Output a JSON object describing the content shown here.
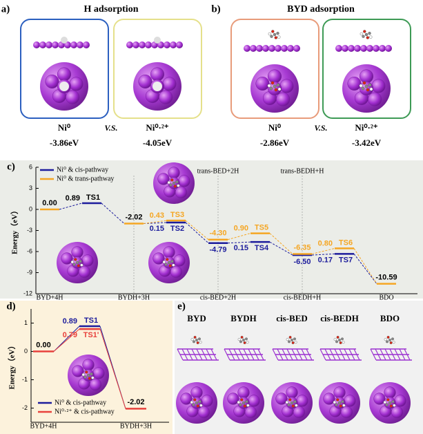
{
  "panel_a": {
    "label": "a)",
    "title": "H adsorption",
    "versus": "V.S.",
    "items": [
      {
        "metal": "Ni⁰",
        "energy": "-3.86eV"
      },
      {
        "metal": "Ni⁰·²⁺",
        "energy": "-4.05eV"
      }
    ]
  },
  "panel_b": {
    "label": "b)",
    "title": "BYD adsorption",
    "versus": "V.S.",
    "items": [
      {
        "metal": "Ni⁰",
        "energy": "-2.86eV"
      },
      {
        "metal": "Ni⁰·²⁺",
        "energy": "-3.42eV"
      }
    ]
  },
  "chart_data": [
    {
      "type": "energy_profile",
      "label": "c)",
      "y_label": "Energy（eV）",
      "ylim": [
        -12,
        6
      ],
      "yticks": [
        6,
        3,
        0,
        -3,
        -6,
        -9,
        -12
      ],
      "categories": [
        "BYD+4H",
        "BYDH+3H",
        "cis-BED+2H",
        "cis-BEDH+H",
        "BDO"
      ],
      "top_categories": [
        "trans-BED+2H",
        "trans-BEDH+H"
      ],
      "legend": "upper left",
      "series": [
        {
          "name": "Ni⁰ & cis-pathway",
          "color": "#1c1c9c",
          "values": [
            0,
            -2.02,
            -4.79,
            -6.5,
            -10.59
          ],
          "value_labels": [
            "0.00",
            "-2.02",
            "-4.79",
            "-6.50",
            "-10.59"
          ],
          "barriers": [
            0.89,
            0.15,
            0.15,
            0.17
          ],
          "barrier_labels": [
            "0.89",
            "0.15",
            "0.15",
            "0.17"
          ],
          "ts_labels": [
            "TS1",
            "TS2",
            "TS4",
            "TS7"
          ]
        },
        {
          "name": "Ni⁰ & trans-pathway",
          "color": "#f5a623",
          "values": [
            null,
            null,
            -4.3,
            -6.35,
            null
          ],
          "value_labels": [
            null,
            null,
            "-4.30",
            "-6.35",
            null
          ],
          "barriers": [
            null,
            0.43,
            0.9,
            0.8
          ],
          "barrier_labels": [
            null,
            "0.43",
            "0.90",
            "0.80"
          ],
          "ts_labels": [
            null,
            "TS3",
            "TS5",
            "TS6"
          ]
        }
      ]
    },
    {
      "type": "energy_profile",
      "label": "d)",
      "y_label": "Energy（eV）",
      "ylim": [
        -2.5,
        1.5
      ],
      "yticks": [
        1,
        0,
        -1,
        -2
      ],
      "categories": [
        "BYD+4H",
        "BYDH+3H"
      ],
      "legend": "lower left",
      "series": [
        {
          "name": "Ni⁰ & cis-pathway",
          "color": "#1c1c9c",
          "values": [
            0,
            -2.02
          ],
          "value_labels": [
            "0.00",
            "-2.02"
          ],
          "barriers": [
            0.89
          ],
          "barrier_labels": [
            "0.89"
          ],
          "ts_labels": [
            "TS1"
          ]
        },
        {
          "name": "Ni⁰·²⁺ & cis-pathway",
          "color": "#e8413c",
          "barriers": [
            0.79
          ],
          "barrier_labels": [
            "0.79"
          ],
          "ts_labels": [
            "TS1'"
          ]
        }
      ]
    }
  ],
  "panel_e": {
    "label": "e)",
    "species": [
      "BYD",
      "BYDH",
      "cis-BED",
      "cis-BEDH",
      "BDO"
    ]
  }
}
